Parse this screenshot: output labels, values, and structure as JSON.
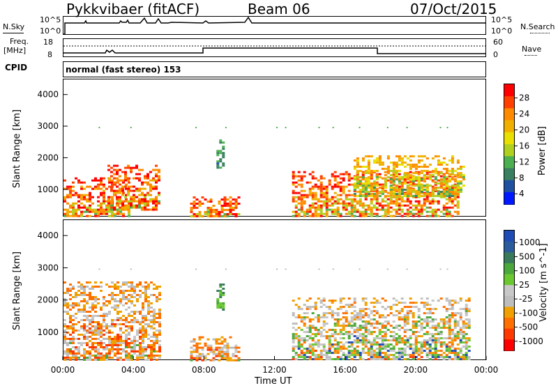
{
  "header": {
    "station": "Pykkvibaer (fitACF)",
    "beam": "Beam 06",
    "date": "07/Oct/2015"
  },
  "strip_nsky": {
    "label": "N.Sky",
    "left_ticks": [
      "10^5",
      "10^0"
    ],
    "right_ticks": [
      "10^5",
      "10^0"
    ],
    "right_label": "N.Search"
  },
  "strip_freq": {
    "label_1": "Freq.",
    "label_2": "[MHz]",
    "left_ticks": [
      "18",
      "8"
    ],
    "right_ticks": [
      "60",
      "0"
    ],
    "right_label": "Nave"
  },
  "cpid": {
    "label": "CPID",
    "text": "normal (fast stereo) 153"
  },
  "x_axis": {
    "label": "Time UT",
    "tick_labels": [
      "00:00",
      "04:00",
      "08:00",
      "12:00",
      "16:00",
      "20:00",
      "00:00"
    ]
  },
  "chart_data": [
    {
      "type": "heatmap",
      "panel": "power",
      "ylabel": "Slant Range [km]",
      "y_ticks": [
        1000,
        2000,
        3000,
        4000
      ],
      "ylim": [
        180,
        4500
      ],
      "xlim_hours": [
        0,
        24
      ],
      "colorbar_label": "Power [dB]",
      "colorbar_ticks": [
        "28",
        "24",
        "20",
        "16",
        "12",
        "8",
        "4"
      ],
      "colorbar_colors": [
        "#ff0000",
        "#ff4000",
        "#ff8a00",
        "#f0b000",
        "#e8e000",
        "#b0d020",
        "#4cb050",
        "#3a8060",
        "#2050a0",
        "#0018ff"
      ],
      "regions": [
        {
          "t_start": 0.0,
          "t_end": 3.8,
          "r_start": 180,
          "r_end": 1400,
          "level": "high"
        },
        {
          "t_start": 2.5,
          "t_end": 5.5,
          "r_start": 400,
          "r_end": 1800,
          "level": "high"
        },
        {
          "t_start": 7.2,
          "t_end": 10.0,
          "r_start": 180,
          "r_end": 800,
          "level": "high"
        },
        {
          "t_start": 8.7,
          "t_end": 9.1,
          "r_start": 1700,
          "r_end": 2600,
          "level": "low"
        },
        {
          "t_start": 13.0,
          "t_end": 22.5,
          "r_start": 180,
          "r_end": 1600,
          "level": "high"
        },
        {
          "t_start": 16.5,
          "t_end": 22.8,
          "r_start": 800,
          "r_end": 2100,
          "level": "mid"
        }
      ]
    },
    {
      "type": "heatmap",
      "panel": "velocity",
      "ylabel": "Slant Range [km]",
      "y_ticks": [
        1000,
        2000,
        3000,
        4000
      ],
      "ylim": [
        180,
        4500
      ],
      "xlim_hours": [
        0,
        24
      ],
      "colorbar_label": "Velocity [m s^-1]",
      "colorbar_ticks": [
        "1000",
        "500",
        "100",
        "25",
        "-25",
        "-100",
        "-500",
        "-1000"
      ],
      "colorbar_colors": [
        "#1f4cb4",
        "#2a5c9c",
        "#3a7a5c",
        "#4ca83c",
        "#6cc830",
        "#c8c8c8",
        "#bdbdbd",
        "#f0a000",
        "#ff7000",
        "#ff3a00",
        "#ff0000"
      ],
      "regions": [
        {
          "t_start": 0.0,
          "t_end": 5.5,
          "r_start": 180,
          "r_end": 2600,
          "level": "negative"
        },
        {
          "t_start": 7.2,
          "t_end": 10.0,
          "r_start": 180,
          "r_end": 900,
          "level": "negative"
        },
        {
          "t_start": 8.7,
          "t_end": 9.1,
          "r_start": 1700,
          "r_end": 2600,
          "level": "positive"
        },
        {
          "t_start": 13.0,
          "t_end": 23.0,
          "r_start": 180,
          "r_end": 2100,
          "level": "mixed"
        }
      ]
    }
  ]
}
